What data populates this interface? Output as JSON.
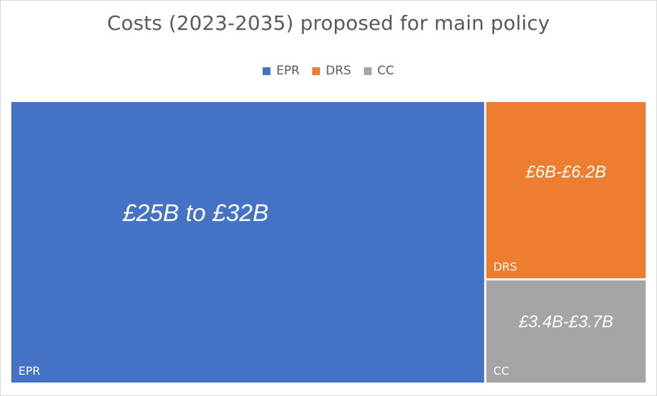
{
  "chart_data": {
    "type": "treemap",
    "title": "Costs (2023-2035) proposed for main policy",
    "legend_position": "top",
    "series": [
      {
        "name": "EPR",
        "value_label": "£25B to £32B",
        "relative_size": 28.5,
        "color": "#4472c4"
      },
      {
        "name": "DRS",
        "value_label": "£6B-£6.2B",
        "relative_size": 6.1,
        "color": "#ed7d31"
      },
      {
        "name": "CC",
        "value_label": "£3.4B-£3.7B",
        "relative_size": 3.55,
        "color": "#a5a5a5"
      }
    ]
  }
}
